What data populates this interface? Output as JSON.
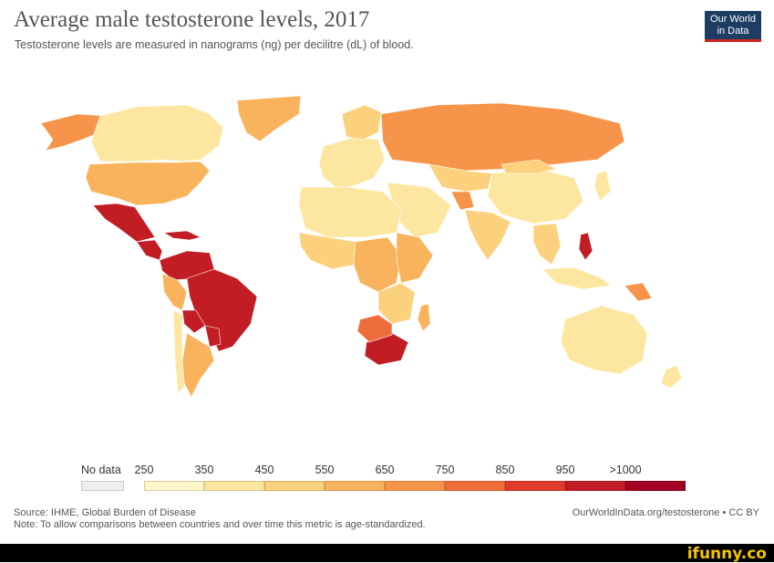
{
  "header": {
    "title": "Average male testosterone levels, 2017",
    "subtitle": "Testosterone levels are measured in nanograms (ng) per decilitre (dL) of blood.",
    "logo_line1": "Our World",
    "logo_line2": "in Data"
  },
  "legend": {
    "no_data_label": "No data",
    "ticks": [
      "250",
      "350",
      "450",
      "550",
      "650",
      "750",
      "850",
      "950",
      ">1000"
    ],
    "colors": [
      "#fef5c8",
      "#fde7a0",
      "#fcd17d",
      "#f9b35c",
      "#f6954a",
      "#ef6d3a",
      "#e03b2c",
      "#c21d25",
      "#a00022"
    ],
    "no_data_color": "#eeeeee"
  },
  "footer": {
    "source": "Source: IHME, Global Burden of Disease",
    "note": "Note: To allow comparisons between countries and over time this metric is age-standardized.",
    "url": "OurWorldInData.org/testosterone • CC BY",
    "brand": "ifunny.co"
  },
  "regions": [
    {
      "name": "Alaska",
      "level": 4
    },
    {
      "name": "Canada",
      "level": 1
    },
    {
      "name": "Greenland",
      "level": 3
    },
    {
      "name": "United States",
      "level": 3
    },
    {
      "name": "Mexico",
      "level": 7
    },
    {
      "name": "Central America",
      "level": 7
    },
    {
      "name": "Caribbean",
      "level": 7
    },
    {
      "name": "Colombia / Venezuela",
      "level": 7
    },
    {
      "name": "Brazil",
      "level": 7
    },
    {
      "name": "Peru",
      "level": 3
    },
    {
      "name": "Bolivia",
      "level": 7
    },
    {
      "name": "Paraguay",
      "level": 7
    },
    {
      "name": "Argentina",
      "level": 3
    },
    {
      "name": "Chile",
      "level": 1
    },
    {
      "name": "Europe",
      "level": 1
    },
    {
      "name": "Scandinavia",
      "level": 2
    },
    {
      "name": "Russia",
      "level": 4
    },
    {
      "name": "Central Asia",
      "level": 2
    },
    {
      "name": "China",
      "level": 1
    },
    {
      "name": "Mongolia",
      "level": 2
    },
    {
      "name": "Middle East",
      "level": 1
    },
    {
      "name": "Afghanistan",
      "level": 4
    },
    {
      "name": "India",
      "level": 2
    },
    {
      "name": "Southeast Asia",
      "level": 2
    },
    {
      "name": "Philippines",
      "level": 7
    },
    {
      "name": "Indonesia",
      "level": 1
    },
    {
      "name": "Papua New Guinea",
      "level": 4
    },
    {
      "name": "North Africa",
      "level": 1
    },
    {
      "name": "West Africa",
      "level": 2
    },
    {
      "name": "Central Africa",
      "level": 3
    },
    {
      "name": "East Africa",
      "level": 3
    },
    {
      "name": "Southern Africa",
      "level": 2
    },
    {
      "name": "South Africa",
      "level": 7
    },
    {
      "name": "Namibia / Botswana",
      "level": 5
    },
    {
      "name": "Madagascar",
      "level": 3
    },
    {
      "name": "Australia",
      "level": 1
    },
    {
      "name": "New Zealand",
      "level": 1
    },
    {
      "name": "Japan",
      "level": 1
    }
  ]
}
